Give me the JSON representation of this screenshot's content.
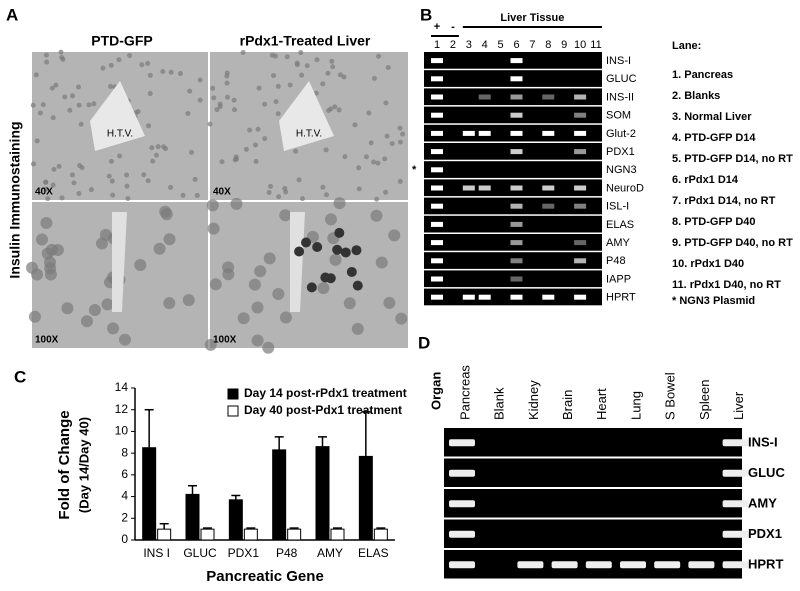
{
  "panel_a": {
    "label": "A",
    "col_titles": [
      "PTD-GFP",
      "rPdx1-Treated Liver"
    ],
    "row_title": "Insulin Immunostaining",
    "vessel_labels": [
      "H.T.V.",
      "H.T.V."
    ],
    "magnifications": [
      "40X",
      "40X",
      "100X",
      "100X"
    ]
  },
  "panel_b": {
    "label": "B",
    "group_labels": [
      "+",
      "-",
      "Liver Tissue"
    ],
    "lanes": [
      "1",
      "2",
      "3",
      "4",
      "5",
      "6",
      "7",
      "8",
      "9",
      "10",
      "11"
    ],
    "genes": [
      "INS-I",
      "GLUC",
      "INS-II",
      "SOM",
      "Glut-2",
      "PDX1",
      "NGN3",
      "NeuroD",
      "ISL-I",
      "ELAS",
      "AMY",
      "P48",
      "IAPP",
      "HPRT"
    ],
    "asterisk": "*",
    "legend_title": "Lane:",
    "legend": [
      "1.  Pancreas",
      "2.  Blanks",
      "3.  Normal Liver",
      "4.  PTD-GFP D14",
      "5.  PTD-GFP D14, no RT",
      "6.  rPdx1  D14",
      "7.  rPdx1 D14, no RT",
      "8.  PTD-GFP D40",
      "9.  PTD-GFP D40, no RT",
      "10.  rPdx1 D40",
      "11.  rPdx1 D40, no RT"
    ],
    "footnote": "* NGN3 Plasmid"
  },
  "chart_data": {
    "type": "bar",
    "panel_label": "C",
    "categories": [
      "INS I",
      "GLUC",
      "PDX1",
      "P48",
      "AMY",
      "ELAS"
    ],
    "series": [
      {
        "name": "Day 14 post-rPdx1 treatment",
        "color": "#000000",
        "values": [
          8.5,
          4.2,
          3.7,
          8.3,
          8.6,
          7.7
        ],
        "errors": [
          3.5,
          0.8,
          0.4,
          1.2,
          0.9,
          4.1
        ]
      },
      {
        "name": "Day 40 post-Pdx1 treatment",
        "color": "#ffffff",
        "values": [
          1.0,
          1.0,
          1.0,
          1.0,
          1.0,
          1.0
        ],
        "errors": [
          0.5,
          0.1,
          0.1,
          0.1,
          0.1,
          0.1
        ]
      }
    ],
    "ylabel": "Fold of Change",
    "ylabel2": "(Day 14/Day 40)",
    "xlabel": "Pancreatic Gene",
    "ylim": [
      0,
      14
    ],
    "yticks": [
      0,
      2,
      4,
      6,
      8,
      10,
      12,
      14
    ],
    "legend": "upper-center"
  },
  "panel_d": {
    "label": "D",
    "corner_label": "Organ",
    "organs": [
      "Pancreas",
      "Blank",
      "Kidney",
      "Brain",
      "Heart",
      "Lung",
      "S Bowel",
      "Spleen",
      "Liver"
    ],
    "genes": [
      "INS-I",
      "GLUC",
      "AMY",
      "PDX1",
      "HPRT"
    ]
  }
}
